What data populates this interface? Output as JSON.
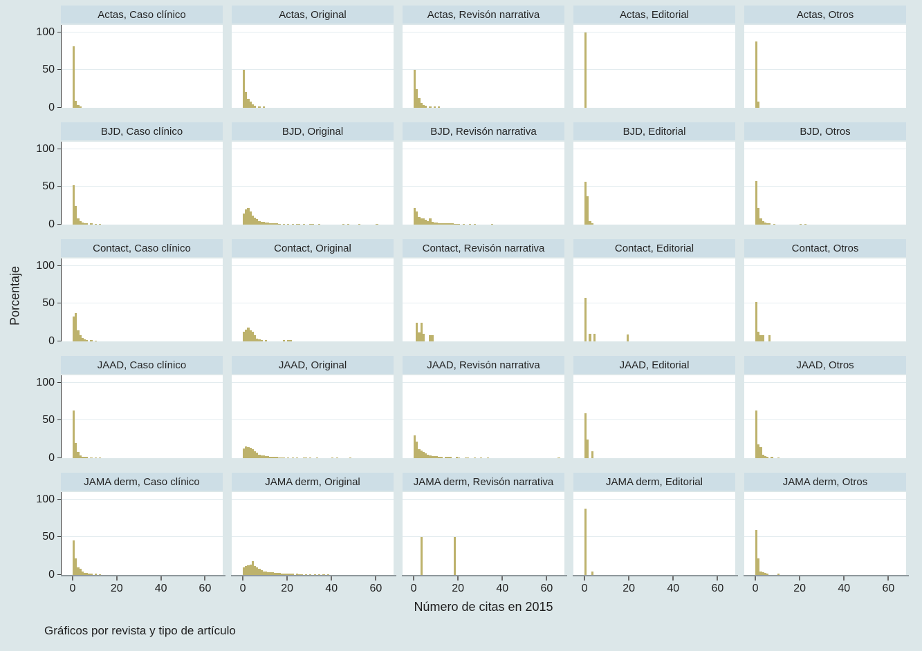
{
  "figure": {
    "ylabel": "Porcentaje",
    "xlabel": "Número de citas en 2015",
    "caption": "Gráficos por revista y tipo de artículo"
  },
  "colors": {
    "background": "#dce7e9",
    "strip_background": "#cddee6",
    "plot_background": "#ffffff",
    "gridline": "#e3ecef",
    "bar_fill": "#bdb26c",
    "y_axis_line": "#3a3a3a",
    "x_axis_line": "#8f989c",
    "text": "#1f1f1f"
  },
  "chart_data": {
    "type": "bar",
    "variant": "histogram small multiples (percent of articles by citation count), 5 journals x 5 article types",
    "title": "",
    "xlabel": "Número de citas en 2015",
    "ylabel": "Porcentaje",
    "legend": "none",
    "grid": "horizontal gridlines at 50 and 100",
    "rows": [
      "Actas",
      "BJD",
      "Contact",
      "JAAD",
      "JAMA derm"
    ],
    "cols": [
      "Caso clínico",
      "Original",
      "Revisón narrativa",
      "Editorial",
      "Otros"
    ],
    "axes": {
      "x_ticks": [
        0,
        20,
        40,
        60
      ],
      "y_ticks": [
        0,
        50,
        100
      ],
      "x_range": [
        -5,
        68
      ],
      "y_display_max": 110,
      "y_gridlines": [
        50,
        100
      ],
      "bin_width": 1
    },
    "panels": [
      {
        "title": "Actas, Caso clínico",
        "bars": [
          [
            0,
            82
          ],
          [
            1,
            9
          ],
          [
            2,
            4
          ],
          [
            3,
            2
          ]
        ]
      },
      {
        "title": "Actas, Original",
        "bars": [
          [
            0,
            50
          ],
          [
            1,
            21
          ],
          [
            2,
            12
          ],
          [
            3,
            8
          ],
          [
            4,
            5
          ],
          [
            5,
            3
          ],
          [
            7,
            2
          ],
          [
            9,
            2
          ]
        ]
      },
      {
        "title": "Actas, Revisón narrativa",
        "bars": [
          [
            0,
            50
          ],
          [
            1,
            25
          ],
          [
            2,
            13
          ],
          [
            3,
            6
          ],
          [
            4,
            4
          ],
          [
            5,
            3
          ],
          [
            7,
            2
          ],
          [
            9,
            2
          ],
          [
            11,
            1.5
          ]
        ]
      },
      {
        "title": "Actas, Editorial",
        "bars": [
          [
            0,
            100
          ]
        ]
      },
      {
        "title": "Actas, Otros",
        "bars": [
          [
            0,
            88
          ],
          [
            1,
            8
          ]
        ]
      },
      {
        "title": "BJD, Caso clínico",
        "bars": [
          [
            0,
            52
          ],
          [
            1,
            25
          ],
          [
            2,
            8
          ],
          [
            3,
            5
          ],
          [
            4,
            3
          ],
          [
            5,
            2
          ],
          [
            6,
            2
          ],
          [
            8,
            1.5
          ],
          [
            10,
            1
          ],
          [
            12,
            1
          ]
        ]
      },
      {
        "title": "BJD, Original",
        "bars": [
          [
            0,
            15
          ],
          [
            1,
            20
          ],
          [
            2,
            22
          ],
          [
            3,
            17
          ],
          [
            4,
            12
          ],
          [
            5,
            9
          ],
          [
            6,
            7
          ],
          [
            7,
            5
          ],
          [
            8,
            4
          ],
          [
            9,
            3.5
          ],
          [
            10,
            3
          ],
          [
            11,
            2.5
          ],
          [
            12,
            2
          ],
          [
            13,
            2
          ],
          [
            14,
            1.5
          ],
          [
            15,
            1.5
          ],
          [
            16,
            1.2
          ],
          [
            18,
            1
          ],
          [
            20,
            1
          ],
          [
            22,
            1
          ],
          [
            24,
            1.2
          ],
          [
            25,
            1
          ],
          [
            27,
            1
          ],
          [
            30,
            1
          ],
          [
            31,
            1.2
          ],
          [
            34,
            1
          ],
          [
            45,
            1
          ],
          [
            47,
            1
          ],
          [
            52,
            1
          ],
          [
            60,
            0.8
          ]
        ]
      },
      {
        "title": "BJD, Revisón narrativa",
        "bars": [
          [
            0,
            22
          ],
          [
            1,
            17
          ],
          [
            2,
            10
          ],
          [
            3,
            8
          ],
          [
            4,
            8
          ],
          [
            5,
            6
          ],
          [
            6,
            5
          ],
          [
            7,
            8
          ],
          [
            8,
            4
          ],
          [
            9,
            3
          ],
          [
            10,
            2.5
          ],
          [
            11,
            2
          ],
          [
            12,
            2
          ],
          [
            13,
            2
          ],
          [
            14,
            2
          ],
          [
            15,
            1.5
          ],
          [
            16,
            1.5
          ],
          [
            17,
            1.5
          ],
          [
            18,
            1.2
          ],
          [
            19,
            1.2
          ],
          [
            20,
            1.2
          ],
          [
            22,
            1
          ],
          [
            25,
            1
          ],
          [
            27,
            1
          ],
          [
            35,
            1
          ]
        ]
      },
      {
        "title": "BJD, Editorial",
        "bars": [
          [
            0,
            57
          ],
          [
            1,
            38
          ],
          [
            2,
            5
          ],
          [
            3,
            2
          ]
        ]
      },
      {
        "title": "BJD, Otros",
        "bars": [
          [
            0,
            58
          ],
          [
            1,
            22
          ],
          [
            2,
            8
          ],
          [
            3,
            5
          ],
          [
            4,
            3
          ],
          [
            5,
            2
          ],
          [
            6,
            1.5
          ],
          [
            8,
            1.2
          ],
          [
            20,
            1
          ],
          [
            22,
            1
          ]
        ]
      },
      {
        "title": "Contact, Caso clínico",
        "bars": [
          [
            0,
            33
          ],
          [
            1,
            38
          ],
          [
            2,
            15
          ],
          [
            3,
            8
          ],
          [
            4,
            5
          ],
          [
            5,
            3
          ],
          [
            6,
            2
          ],
          [
            8,
            2
          ],
          [
            10,
            1
          ]
        ]
      },
      {
        "title": "Contact, Original",
        "bars": [
          [
            0,
            13
          ],
          [
            1,
            16
          ],
          [
            2,
            18
          ],
          [
            3,
            15
          ],
          [
            4,
            13
          ],
          [
            5,
            8
          ],
          [
            6,
            4
          ],
          [
            7,
            3
          ],
          [
            8,
            2
          ],
          [
            10,
            2
          ],
          [
            18,
            2
          ],
          [
            20,
            1.5
          ],
          [
            21,
            1.5
          ]
        ]
      },
      {
        "title": "Contact, Revisón narrativa",
        "bars": [
          [
            1,
            25
          ],
          [
            2,
            12
          ],
          [
            3,
            25
          ],
          [
            4,
            10
          ],
          [
            7,
            8
          ],
          [
            8,
            8
          ]
        ]
      },
      {
        "title": "Contact, Editorial",
        "bars": [
          [
            0,
            58
          ],
          [
            2,
            10
          ],
          [
            4,
            10
          ],
          [
            19,
            9
          ]
        ]
      },
      {
        "title": "Contact, Otros",
        "bars": [
          [
            0,
            52
          ],
          [
            1,
            13
          ],
          [
            2,
            8
          ],
          [
            3,
            8
          ],
          [
            6,
            8
          ]
        ]
      },
      {
        "title": "JAAD, Caso clínico",
        "bars": [
          [
            0,
            63
          ],
          [
            1,
            20
          ],
          [
            2,
            8
          ],
          [
            3,
            4
          ],
          [
            4,
            2
          ],
          [
            5,
            2
          ],
          [
            6,
            1.5
          ],
          [
            8,
            1
          ],
          [
            10,
            1
          ],
          [
            12,
            0.8
          ]
        ]
      },
      {
        "title": "JAAD, Original",
        "bars": [
          [
            0,
            13
          ],
          [
            1,
            16
          ],
          [
            2,
            15
          ],
          [
            3,
            14
          ],
          [
            4,
            12
          ],
          [
            5,
            9
          ],
          [
            6,
            7
          ],
          [
            7,
            5
          ],
          [
            8,
            4
          ],
          [
            9,
            3.5
          ],
          [
            10,
            3
          ],
          [
            11,
            2.5
          ],
          [
            12,
            2
          ],
          [
            13,
            2
          ],
          [
            14,
            1.5
          ],
          [
            15,
            1.5
          ],
          [
            16,
            1.2
          ],
          [
            17,
            1
          ],
          [
            18,
            1
          ],
          [
            20,
            1
          ],
          [
            22,
            1
          ],
          [
            24,
            0.8
          ],
          [
            27,
            1
          ],
          [
            28,
            0.8
          ],
          [
            30,
            0.8
          ],
          [
            33,
            0.8
          ],
          [
            40,
            0.8
          ],
          [
            42,
            0.8
          ],
          [
            48,
            0.8
          ]
        ]
      },
      {
        "title": "JAAD, Revisón narrativa",
        "bars": [
          [
            0,
            30
          ],
          [
            1,
            22
          ],
          [
            2,
            12
          ],
          [
            3,
            10
          ],
          [
            4,
            8
          ],
          [
            5,
            6
          ],
          [
            6,
            5
          ],
          [
            7,
            4
          ],
          [
            8,
            3
          ],
          [
            9,
            3
          ],
          [
            10,
            2.5
          ],
          [
            11,
            2
          ],
          [
            12,
            2
          ],
          [
            14,
            2
          ],
          [
            15,
            2
          ],
          [
            16,
            1.5
          ],
          [
            19,
            1.5
          ],
          [
            20,
            1.2
          ],
          [
            23,
            1.2
          ],
          [
            24,
            1
          ],
          [
            27,
            1
          ],
          [
            30,
            1
          ],
          [
            33,
            0.8
          ],
          [
            65,
            1
          ]
        ]
      },
      {
        "title": "JAAD, Editorial",
        "bars": [
          [
            0,
            60
          ],
          [
            1,
            25
          ],
          [
            3,
            9
          ]
        ]
      },
      {
        "title": "JAAD, Otros",
        "bars": [
          [
            0,
            63
          ],
          [
            1,
            18
          ],
          [
            2,
            15
          ],
          [
            3,
            5
          ],
          [
            4,
            3
          ],
          [
            5,
            2
          ],
          [
            7,
            1.5
          ],
          [
            10,
            1
          ]
        ]
      },
      {
        "title": "JAMA derm, Caso clínico",
        "bars": [
          [
            0,
            46
          ],
          [
            1,
            22
          ],
          [
            2,
            10
          ],
          [
            3,
            8
          ],
          [
            4,
            5
          ],
          [
            5,
            3
          ],
          [
            6,
            3
          ],
          [
            7,
            2
          ],
          [
            8,
            2
          ],
          [
            10,
            1.5
          ],
          [
            12,
            1
          ]
        ]
      },
      {
        "title": "JAMA derm, Original",
        "bars": [
          [
            0,
            10
          ],
          [
            1,
            12
          ],
          [
            2,
            13
          ],
          [
            3,
            14
          ],
          [
            4,
            18
          ],
          [
            5,
            12
          ],
          [
            6,
            10
          ],
          [
            7,
            8
          ],
          [
            8,
            6
          ],
          [
            9,
            5
          ],
          [
            10,
            5
          ],
          [
            11,
            4
          ],
          [
            12,
            4
          ],
          [
            13,
            3.5
          ],
          [
            14,
            3
          ],
          [
            15,
            3
          ],
          [
            16,
            2.5
          ],
          [
            17,
            2
          ],
          [
            18,
            2
          ],
          [
            19,
            2
          ],
          [
            20,
            2
          ],
          [
            21,
            1.5
          ],
          [
            22,
            1.5
          ],
          [
            24,
            1.5
          ],
          [
            25,
            1.2
          ],
          [
            26,
            1.2
          ],
          [
            28,
            1
          ],
          [
            30,
            1
          ],
          [
            32,
            1
          ],
          [
            34,
            1
          ],
          [
            36,
            0.8
          ],
          [
            38,
            0.8
          ]
        ]
      },
      {
        "title": "JAMA derm, Revisón narrativa",
        "bars": [
          [
            3,
            50
          ],
          [
            18,
            50
          ]
        ]
      },
      {
        "title": "JAMA derm, Editorial",
        "bars": [
          [
            0,
            88
          ],
          [
            3,
            5
          ]
        ]
      },
      {
        "title": "JAMA derm, Otros",
        "bars": [
          [
            0,
            60
          ],
          [
            1,
            22
          ],
          [
            2,
            5
          ],
          [
            3,
            4
          ],
          [
            4,
            3
          ],
          [
            5,
            2
          ],
          [
            10,
            2
          ]
        ]
      }
    ]
  }
}
